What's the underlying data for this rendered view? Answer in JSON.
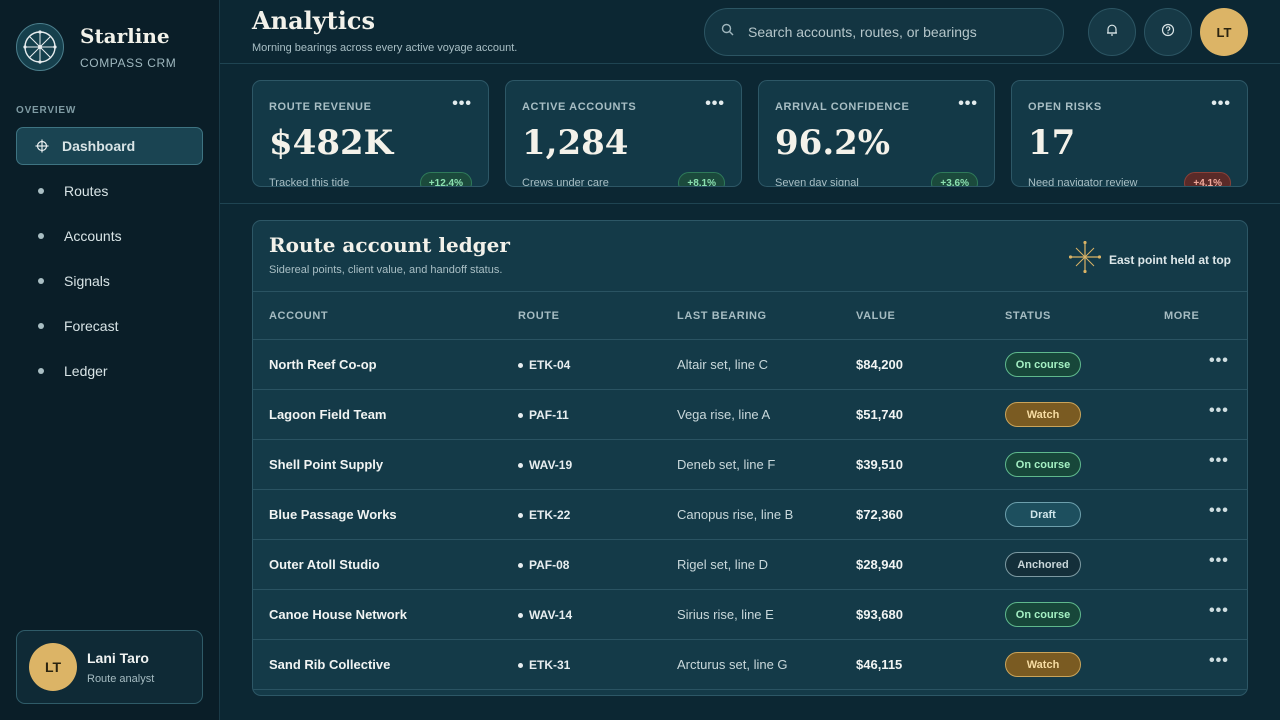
{
  "brand": {
    "name": "Starline",
    "subtitle": "COMPASS CRM"
  },
  "nav": {
    "section_label": "OVERVIEW",
    "items": [
      {
        "label": "Dashboard",
        "active": true
      },
      {
        "label": "Routes"
      },
      {
        "label": "Accounts"
      },
      {
        "label": "Signals"
      },
      {
        "label": "Forecast"
      },
      {
        "label": "Ledger"
      }
    ]
  },
  "user": {
    "initials": "LT",
    "name": "Lani Taro",
    "role": "Route analyst"
  },
  "header": {
    "title": "Analytics",
    "subtitle": "Morning bearings across every active voyage account.",
    "search_placeholder": "Search accounts, routes, or bearings",
    "avatar_initials": "LT",
    "icons": [
      "bell-icon",
      "help-icon"
    ]
  },
  "kpis": [
    {
      "label": "ROUTE REVENUE",
      "value": "$482K",
      "note": "Tracked this tide",
      "delta": "+12.4%",
      "trend": "up"
    },
    {
      "label": "ACTIVE ACCOUNTS",
      "value": "1,284",
      "note": "Crews under care",
      "delta": "+8.1%",
      "trend": "up"
    },
    {
      "label": "ARRIVAL CONFIDENCE",
      "value": "96.2%",
      "note": "Seven day signal",
      "delta": "+3.6%",
      "trend": "up"
    },
    {
      "label": "OPEN RISKS",
      "value": "17",
      "note": "Need navigator review",
      "delta": "+4.1%",
      "trend": "down"
    }
  ],
  "ledger": {
    "title": "Route account ledger",
    "subtitle": "Sidereal points, client value, and handoff status.",
    "aside": "East point held at top",
    "columns": [
      "ACCOUNT",
      "ROUTE",
      "LAST BEARING",
      "VALUE",
      "STATUS",
      "MORE"
    ],
    "rows": [
      {
        "account": "North Reef Co-op",
        "route": "ETK-04",
        "bearing": "Altair set, line C",
        "value": "$84,200",
        "status": "On course"
      },
      {
        "account": "Lagoon Field Team",
        "route": "PAF-11",
        "bearing": "Vega rise, line A",
        "value": "$51,740",
        "status": "Watch"
      },
      {
        "account": "Shell Point Supply",
        "route": "WAV-19",
        "bearing": "Deneb set, line F",
        "value": "$39,510",
        "status": "On course"
      },
      {
        "account": "Blue Passage Works",
        "route": "ETK-22",
        "bearing": "Canopus rise, line B",
        "value": "$72,360",
        "status": "Draft"
      },
      {
        "account": "Outer Atoll Studio",
        "route": "PAF-08",
        "bearing": "Rigel set, line D",
        "value": "$28,940",
        "status": "Anchored"
      },
      {
        "account": "Canoe House Network",
        "route": "WAV-14",
        "bearing": "Sirius rise, line E",
        "value": "$93,680",
        "status": "On course"
      },
      {
        "account": "Sand Rib Collective",
        "route": "ETK-31",
        "bearing": "Arcturus set, line G",
        "value": "$46,115",
        "status": "Watch"
      }
    ]
  },
  "colors": {
    "accent_gold": "#dcb466",
    "positive": "#8be0b0",
    "negative": "#f0a89a",
    "background": "#0c2733"
  }
}
